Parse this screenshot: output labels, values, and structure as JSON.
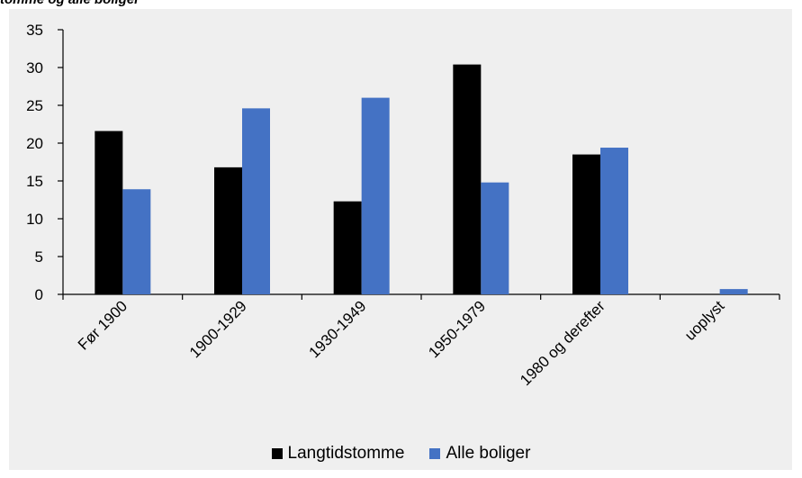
{
  "page_caption": "tomme og alle boliger",
  "chart_data": {
    "type": "bar",
    "categories": [
      "Før 1900",
      "1900-1929",
      "1930-1949",
      "1950-1979",
      "1980 og derefter",
      "uoplyst"
    ],
    "series": [
      {
        "name": "Langtidstomme",
        "color": "#000000",
        "values": [
          21.6,
          16.8,
          12.3,
          30.4,
          18.5,
          0
        ]
      },
      {
        "name": "Alle boliger",
        "color": "#4472c4",
        "values": [
          13.9,
          24.6,
          26.0,
          14.8,
          19.4,
          0.7
        ]
      }
    ],
    "ylim": [
      0,
      35
    ],
    "yticks": [
      "0",
      "5",
      "10",
      "15",
      "20",
      "25",
      "30",
      "35"
    ],
    "grid": false,
    "legend_position": "bottom",
    "title": "",
    "xlabel": "",
    "ylabel": ""
  }
}
